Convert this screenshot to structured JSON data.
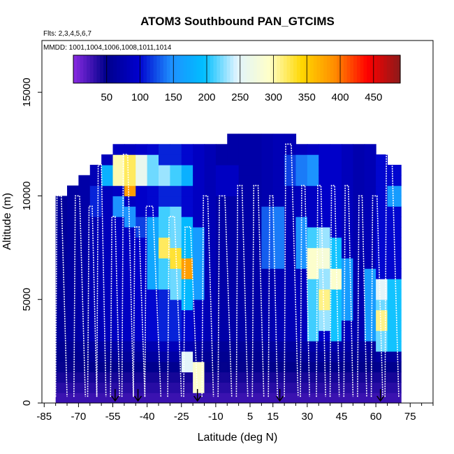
{
  "chart_data": {
    "type": "heatmap",
    "title": "ATOM3 Southbound PAN_GTCIMS",
    "flights_label": "Flts: 2,3,4,5,6,7",
    "dates_label": "MMDD: 1001,1004,1006,1008,1011,1014",
    "xlabel": "Latitude (deg N)",
    "ylabel": "Altitude (m)",
    "xlim": [
      -86,
      85
    ],
    "ylim": [
      0,
      17500
    ],
    "x_ticks": [
      -85,
      -70,
      -55,
      -40,
      -25,
      -10,
      5,
      15,
      30,
      45,
      60,
      75
    ],
    "x_tick_labels": [
      "-85",
      "-70",
      "-55",
      "-40",
      "-25",
      "-10",
      "5",
      "15",
      "30",
      "45",
      "60",
      "75"
    ],
    "y_ticks": [
      0,
      5000,
      10000,
      15000
    ],
    "y_tick_labels": [
      "0",
      "5000",
      "10000",
      "15000"
    ],
    "colorbar": {
      "min": 0,
      "max": 490,
      "ticks": [
        50,
        100,
        150,
        200,
        250,
        300,
        350,
        400,
        450
      ],
      "tick_labels": [
        "50",
        "100",
        "150",
        "200",
        "250",
        "300",
        "350",
        "400",
        "450"
      ],
      "stops": [
        "#8a2be2",
        "#00008b",
        "#0000cd",
        "#1e90ff",
        "#00bfff",
        "#e0f4ff",
        "#ffffc8",
        "#ffd700",
        "#ff8c00",
        "#ff0000",
        "#8b1a1a"
      ]
    },
    "profile_arrows_lat": [
      -54,
      -44,
      -18,
      18,
      62
    ],
    "columns": [
      {
        "lat_min": -80,
        "lat_max": -75,
        "top": 10000,
        "bg": 60,
        "anoms": []
      },
      {
        "lat_min": -75,
        "lat_max": -70,
        "top": 10500,
        "bg": 65,
        "anoms": []
      },
      {
        "lat_min": -70,
        "lat_max": -65,
        "top": 11000,
        "bg": 70,
        "anoms": []
      },
      {
        "lat_min": -65,
        "lat_max": -60,
        "top": 11500,
        "bg": 80,
        "anoms": [
          {
            "a": 9000,
            "b": 10500,
            "v": 110
          }
        ]
      },
      {
        "lat_min": -60,
        "lat_max": -55,
        "top": 12000,
        "bg": 85,
        "anoms": [
          {
            "a": 10500,
            "b": 11500,
            "v": 180
          }
        ]
      },
      {
        "lat_min": -55,
        "lat_max": -50,
        "top": 12500,
        "bg": 90,
        "anoms": [
          {
            "a": 10500,
            "b": 11800,
            "v": 300
          },
          {
            "a": 9000,
            "b": 10000,
            "v": 150
          }
        ]
      },
      {
        "lat_min": -50,
        "lat_max": -45,
        "top": 12500,
        "bg": 90,
        "anoms": [
          {
            "a": 10500,
            "b": 11800,
            "v": 320
          },
          {
            "a": 9800,
            "b": 10300,
            "v": 380
          },
          {
            "a": 8500,
            "b": 9500,
            "v": 150
          }
        ]
      },
      {
        "lat_min": -45,
        "lat_max": -40,
        "top": 12500,
        "bg": 95,
        "anoms": [
          {
            "a": 10500,
            "b": 11800,
            "v": 260
          },
          {
            "a": 8000,
            "b": 9000,
            "v": 120
          }
        ]
      },
      {
        "lat_min": -40,
        "lat_max": -35,
        "top": 12500,
        "bg": 100,
        "anoms": [
          {
            "a": 10500,
            "b": 11800,
            "v": 220
          },
          {
            "a": 5500,
            "b": 9000,
            "v": 170
          }
        ]
      },
      {
        "lat_min": -35,
        "lat_max": -30,
        "top": 12500,
        "bg": 110,
        "anoms": [
          {
            "a": 10500,
            "b": 11500,
            "v": 230
          },
          {
            "a": 5500,
            "b": 9500,
            "v": 210
          },
          {
            "a": 7000,
            "b": 8000,
            "v": 320
          }
        ]
      },
      {
        "lat_min": -30,
        "lat_max": -25,
        "top": 12500,
        "bg": 110,
        "anoms": [
          {
            "a": 10500,
            "b": 11500,
            "v": 210
          },
          {
            "a": 5000,
            "b": 9500,
            "v": 220
          },
          {
            "a": 6500,
            "b": 7500,
            "v": 330
          }
        ]
      },
      {
        "lat_min": -25,
        "lat_max": -20,
        "top": 12500,
        "bg": 100,
        "anoms": [
          {
            "a": 10500,
            "b": 11500,
            "v": 180
          },
          {
            "a": 4500,
            "b": 9000,
            "v": 190
          },
          {
            "a": 6000,
            "b": 7000,
            "v": 380
          },
          {
            "a": 1500,
            "b": 2500,
            "v": 250
          }
        ]
      },
      {
        "lat_min": -20,
        "lat_max": -15,
        "top": 12500,
        "bg": 90,
        "anoms": [
          {
            "a": 5000,
            "b": 8500,
            "v": 160
          },
          {
            "a": 500,
            "b": 2000,
            "v": 290
          }
        ]
      },
      {
        "lat_min": -15,
        "lat_max": -10,
        "top": 12500,
        "bg": 80,
        "anoms": []
      },
      {
        "lat_min": -10,
        "lat_max": -5,
        "top": 12500,
        "bg": 70,
        "anoms": [
          {
            "a": 10000,
            "b": 11500,
            "v": 90
          }
        ]
      },
      {
        "lat_min": -5,
        "lat_max": 0,
        "top": 13000,
        "bg": 70,
        "anoms": [
          {
            "a": 10000,
            "b": 11500,
            "v": 90
          }
        ]
      },
      {
        "lat_min": 0,
        "lat_max": 5,
        "top": 13000,
        "bg": 70,
        "anoms": []
      },
      {
        "lat_min": 5,
        "lat_max": 10,
        "top": 13000,
        "bg": 70,
        "anoms": []
      },
      {
        "lat_min": 10,
        "lat_max": 15,
        "top": 13000,
        "bg": 75,
        "anoms": [
          {
            "a": 6500,
            "b": 9500,
            "v": 130
          }
        ]
      },
      {
        "lat_min": 15,
        "lat_max": 20,
        "top": 13000,
        "bg": 80,
        "anoms": [
          {
            "a": 6500,
            "b": 9500,
            "v": 140
          }
        ]
      },
      {
        "lat_min": 20,
        "lat_max": 25,
        "top": 13000,
        "bg": 80,
        "anoms": [
          {
            "a": 10500,
            "b": 12000,
            "v": 120
          }
        ]
      },
      {
        "lat_min": 25,
        "lat_max": 30,
        "top": 12500,
        "bg": 85,
        "anoms": [
          {
            "a": 10500,
            "b": 12000,
            "v": 140
          },
          {
            "a": 6500,
            "b": 9000,
            "v": 150
          }
        ]
      },
      {
        "lat_min": 30,
        "lat_max": 35,
        "top": 12500,
        "bg": 90,
        "anoms": [
          {
            "a": 10500,
            "b": 12000,
            "v": 150
          },
          {
            "a": 3000,
            "b": 8500,
            "v": 210
          },
          {
            "a": 6000,
            "b": 7500,
            "v": 290
          }
        ]
      },
      {
        "lat_min": 35,
        "lat_max": 40,
        "top": 12500,
        "bg": 95,
        "anoms": [
          {
            "a": 3500,
            "b": 8500,
            "v": 230
          },
          {
            "a": 4500,
            "b": 5500,
            "v": 310
          },
          {
            "a": 6500,
            "b": 7500,
            "v": 280
          }
        ]
      },
      {
        "lat_min": 40,
        "lat_max": 45,
        "top": 12500,
        "bg": 95,
        "anoms": [
          {
            "a": 3000,
            "b": 8000,
            "v": 200
          },
          {
            "a": 5500,
            "b": 6500,
            "v": 290
          }
        ]
      },
      {
        "lat_min": 45,
        "lat_max": 50,
        "top": 12500,
        "bg": 85,
        "anoms": [
          {
            "a": 4000,
            "b": 7000,
            "v": 160
          }
        ]
      },
      {
        "lat_min": 50,
        "lat_max": 55,
        "top": 12500,
        "bg": 75,
        "anoms": []
      },
      {
        "lat_min": 55,
        "lat_max": 60,
        "top": 12500,
        "bg": 80,
        "anoms": [
          {
            "a": 3000,
            "b": 6500,
            "v": 160
          }
        ]
      },
      {
        "lat_min": 60,
        "lat_max": 65,
        "top": 12000,
        "bg": 100,
        "anoms": [
          {
            "a": 2500,
            "b": 6000,
            "v": 220
          },
          {
            "a": 3500,
            "b": 4500,
            "v": 310
          },
          {
            "a": 5000,
            "b": 6000,
            "v": 250
          }
        ]
      },
      {
        "lat_min": 65,
        "lat_max": 71,
        "top": 11500,
        "bg": 100,
        "anoms": [
          {
            "a": 2500,
            "b": 6000,
            "v": 200
          },
          {
            "a": 9500,
            "b": 10500,
            "v": 160
          }
        ]
      }
    ],
    "profiles": [
      {
        "x0": -80,
        "x1": -75,
        "top": 10000
      },
      {
        "x0": -72,
        "x1": -67,
        "top": 10000
      },
      {
        "x0": -66,
        "x1": -62,
        "top": 9500
      },
      {
        "x0": -62,
        "x1": -58,
        "top": 11500
      },
      {
        "x0": -56,
        "x1": -52,
        "top": 9000
      },
      {
        "x0": -51,
        "x1": -46,
        "top": 12000
      },
      {
        "x0": -46,
        "x1": -41,
        "top": 8500
      },
      {
        "x0": -41,
        "x1": -34,
        "top": 9500
      },
      {
        "x0": -31,
        "x1": -25,
        "top": 9000
      },
      {
        "x0": -24,
        "x1": -18,
        "top": 8500
      },
      {
        "x0": -16,
        "x1": -11,
        "top": 10000
      },
      {
        "x0": -9,
        "x1": -3,
        "top": 10000
      },
      {
        "x0": -1,
        "x1": 4,
        "top": 10500
      },
      {
        "x0": 6,
        "x1": 11,
        "top": 10500
      },
      {
        "x0": 13,
        "x1": 17,
        "top": 10000
      },
      {
        "x0": 20,
        "x1": 26,
        "top": 12500
      },
      {
        "x0": 27,
        "x1": 31,
        "top": 10500
      },
      {
        "x0": 34,
        "x1": 38,
        "top": 10500
      },
      {
        "x0": 40,
        "x1": 44,
        "top": 10500
      },
      {
        "x0": 46,
        "x1": 50,
        "top": 10500
      },
      {
        "x0": 52,
        "x1": 56,
        "top": 10000
      },
      {
        "x0": 58,
        "x1": 63,
        "top": 10000
      },
      {
        "x0": 64,
        "x1": 70,
        "top": 12000
      }
    ]
  }
}
